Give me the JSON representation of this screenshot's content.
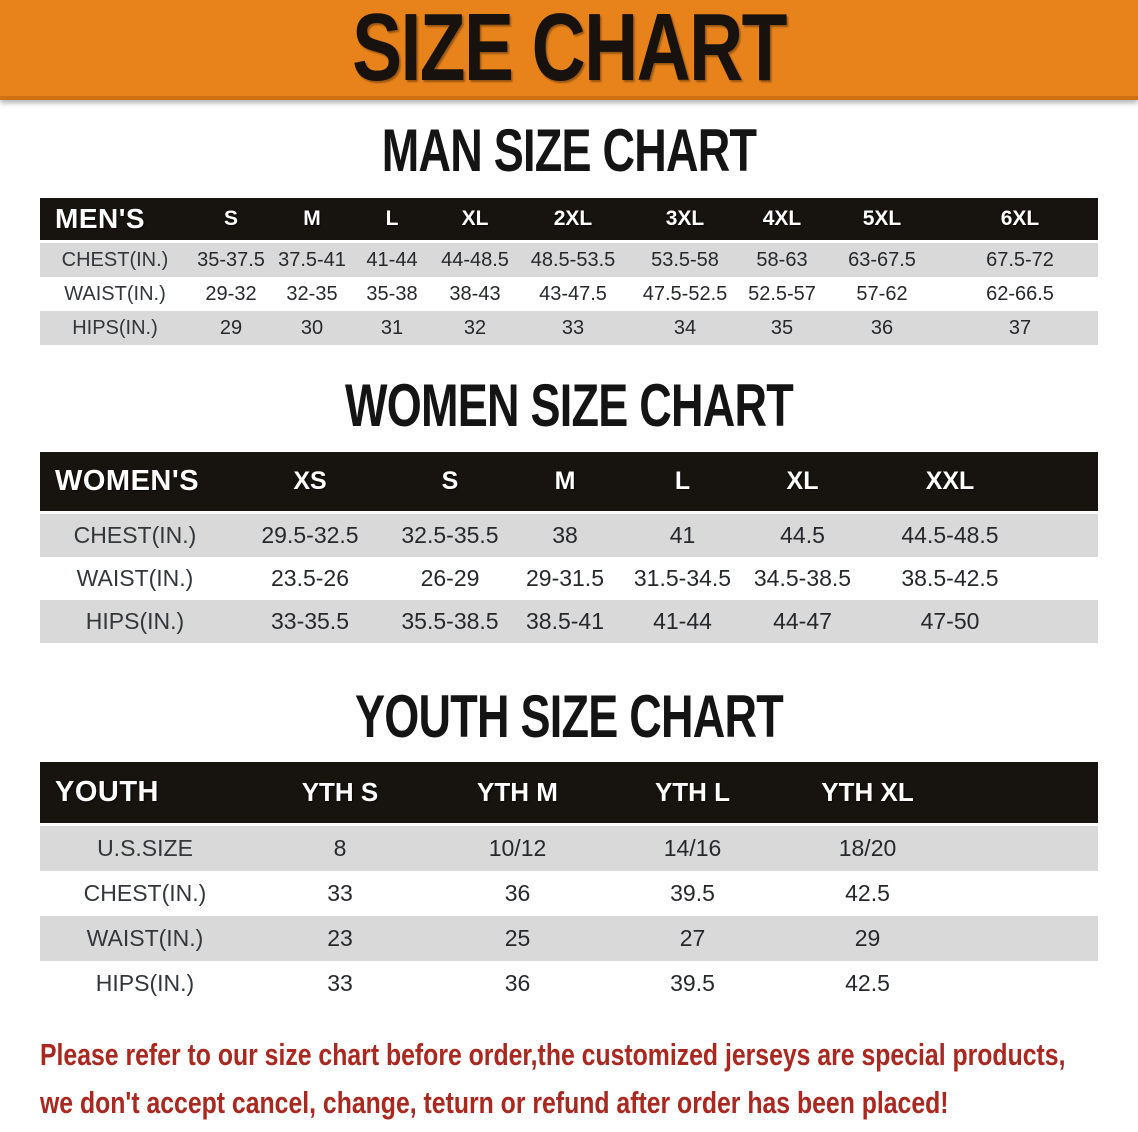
{
  "banner": {
    "title": "SIZE CHART",
    "bg_color": "#E8831C"
  },
  "sections": {
    "men": {
      "heading": "MAN SIZE CHART",
      "table": {
        "header_label": "MEN'S",
        "columns": [
          "S",
          "M",
          "L",
          "XL",
          "2XL",
          "3XL",
          "4XL",
          "5XL",
          "6XL"
        ],
        "rows": [
          {
            "label": "CHEST(IN.)",
            "values": [
              "35-37.5",
              "37.5-41",
              "41-44",
              "44-48.5",
              "48.5-53.5",
              "53.5-58",
              "58-63",
              "63-67.5",
              "67.5-72"
            ]
          },
          {
            "label": "WAIST(IN.)",
            "values": [
              "29-32",
              "32-35",
              "35-38",
              "38-43",
              "43-47.5",
              "47.5-52.5",
              "52.5-57",
              "57-62",
              "62-66.5"
            ]
          },
          {
            "label": "HIPS(IN.)",
            "values": [
              "29",
              "30",
              "31",
              "32",
              "33",
              "34",
              "35",
              "36",
              "37"
            ]
          }
        ]
      }
    },
    "women": {
      "heading": "WOMEN SIZE CHART",
      "table": {
        "header_label": "WOMEN'S",
        "columns": [
          "XS",
          "S",
          "M",
          "L",
          "XL",
          "XXL"
        ],
        "rows": [
          {
            "label": "CHEST(IN.)",
            "values": [
              "29.5-32.5",
              "32.5-35.5",
              "38",
              "41",
              "44.5",
              "44.5-48.5"
            ]
          },
          {
            "label": "WAIST(IN.)",
            "values": [
              "23.5-26",
              "26-29",
              "29-31.5",
              "31.5-34.5",
              "34.5-38.5",
              "38.5-42.5"
            ]
          },
          {
            "label": "HIPS(IN.)",
            "values": [
              "33-35.5",
              "35.5-38.5",
              "38.5-41",
              "41-44",
              "44-47",
              "47-50"
            ]
          }
        ]
      }
    },
    "youth": {
      "heading": "YOUTH SIZE CHART",
      "table": {
        "header_label": "YOUTH",
        "columns": [
          "YTH S",
          "YTH M",
          "YTH L",
          "YTH XL"
        ],
        "rows": [
          {
            "label": "U.S.SIZE",
            "values": [
              "8",
              "10/12",
              "14/16",
              "18/20"
            ]
          },
          {
            "label": "CHEST(IN.)",
            "values": [
              "33",
              "36",
              "39.5",
              "42.5"
            ]
          },
          {
            "label": "WAIST(IN.)",
            "values": [
              "23",
              "25",
              "27",
              "29"
            ]
          },
          {
            "label": "HIPS(IN.)",
            "values": [
              "33",
              "36",
              "39.5",
              "42.5"
            ]
          }
        ]
      }
    }
  },
  "disclaimer": {
    "lines": [
      "Please refer to our size chart before order,the customized jerseys are special products,",
      "we don't accept cancel, change, teturn or refund after order has been placed!"
    ],
    "color": "#A9281F"
  },
  "colors": {
    "banner_orange": "#E8831C",
    "header_black": "#17130F",
    "stripe_gray": "#D9D9D9",
    "disclaimer_red": "#A9281F"
  }
}
